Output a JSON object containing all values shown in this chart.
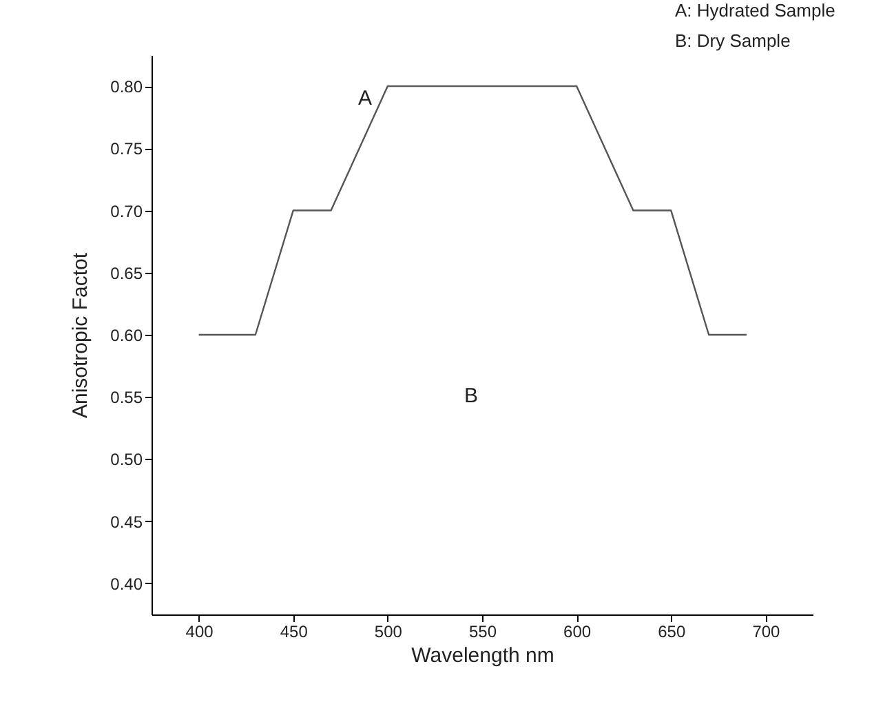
{
  "chart_data": {
    "type": "line",
    "xlabel": "Wavelength nm",
    "ylabel": "Anisotropic Factot",
    "x": [
      400,
      430,
      450,
      470,
      500,
      600,
      630,
      650,
      670,
      690
    ],
    "series": [
      {
        "color": "#555555",
        "values": [
          0.6,
          0.6,
          0.7,
          0.7,
          0.8,
          0.8,
          0.7,
          0.7,
          0.6,
          0.6
        ]
      }
    ],
    "xlim": [
      375,
      725
    ],
    "xticks": [
      400,
      450,
      500,
      550,
      600,
      650,
      700
    ],
    "ylim": [
      0.375,
      0.825
    ],
    "yticks": [
      {
        "value": 0.4,
        "label": "0.40"
      },
      {
        "value": 0.45,
        "label": "0.45"
      },
      {
        "value": 0.5,
        "label": "0.50"
      },
      {
        "value": 0.55,
        "label": "0.55"
      },
      {
        "value": 0.6,
        "label": "0.60"
      },
      {
        "value": 0.65,
        "label": "0.65"
      },
      {
        "value": 0.7,
        "label": "0.70"
      },
      {
        "value": 0.75,
        "label": "0.75"
      },
      {
        "value": 0.8,
        "label": "0.80"
      }
    ],
    "grid": false,
    "marker": "none",
    "line_style": "solid",
    "annotations": [
      "A",
      "B",
      "A: Hydrated Sample",
      "B: Dry Sample"
    ]
  }
}
